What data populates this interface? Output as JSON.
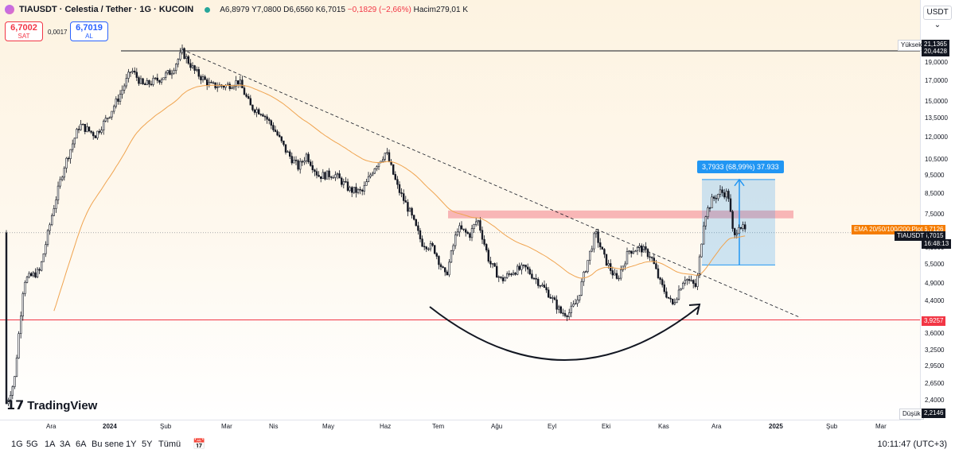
{
  "header": {
    "title": "TIAUSDT · Celestia / Tether · 1G · KUCOIN",
    "ohlc_a": "A6,8979",
    "ohlc_y": "Y7,0800",
    "ohlc_d": "D6,6560",
    "ohlc_k": "K6,7015",
    "change": "−0,1829 (−2,66%)",
    "volume": "Hacim279,01 K"
  },
  "trade": {
    "sell_price": "6,7002",
    "sell_label": "SAT",
    "spread": "0,0017",
    "buy_price": "6,7019",
    "buy_label": "AL"
  },
  "currency": "USDT",
  "colors": {
    "up": "#131722",
    "down": "#131722",
    "ema": "#f0a450",
    "resistance_zone": "#f6a5a8",
    "support_line": "#f23645",
    "measure": "#2196f3"
  },
  "chart_data": {
    "type": "candlestick",
    "price_scale": "log",
    "y_ticks": [
      "21,1365",
      "20,4428",
      "19,0000",
      "17,0000",
      "15,0000",
      "13,5000",
      "12,0000",
      "10,5000",
      "9,5000",
      "8,5000",
      "7,5000",
      "6,7126",
      "6,7015",
      "6,1000",
      "5,5000",
      "4,9000",
      "4,4000",
      "3,9257",
      "3,6000",
      "3,2500",
      "2,9500",
      "2,6500",
      "2,4000",
      "2,2146"
    ],
    "x_ticks": [
      "Ara",
      "2024",
      "Şub",
      "Mar",
      "Nis",
      "May",
      "Haz",
      "Tem",
      "Ağu",
      "Eyl",
      "Eki",
      "Kas",
      "Ara",
      "2025",
      "Şub",
      "Mar"
    ],
    "high_label": "Yüksek",
    "high_value": "21,1365",
    "top_line_value": "20,4428",
    "low_label": "Düşük",
    "low_value": "2,2146",
    "support_value": "3,9257",
    "ema_label": "EMA 20/50/100/200:Plot",
    "ema_value": "6,7126",
    "symbol_tag": "TIAUSDT",
    "last_price": "6,7015",
    "countdown": "16:48:13",
    "measure_label": "3,7933 (68,99%) 37.933",
    "resistance_zone": [
      7.32,
      7.68
    ],
    "measure_range": [
      5.5,
      9.29
    ]
  },
  "timeframes": [
    "1G",
    "5G",
    "1A",
    "3A",
    "6A",
    "Bu sene",
    "1Y",
    "5Y",
    "Tümü"
  ],
  "clock": "10:11:47 (UTC+3)",
  "logo_text": "TradingView"
}
